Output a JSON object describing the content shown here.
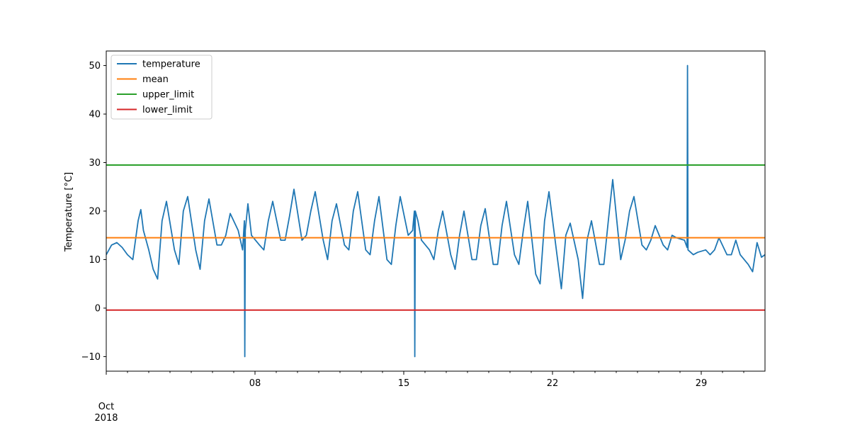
{
  "chart_data": {
    "type": "line",
    "title": "",
    "xlabel": "",
    "ylabel": "Temperature [°C]",
    "x_ticks": [
      "08",
      "15",
      "22",
      "29"
    ],
    "x_tick_dates": [
      "2018-10-08",
      "2018-10-15",
      "2018-10-22",
      "2018-10-29"
    ],
    "x_origin_label": [
      "Oct",
      "2018"
    ],
    "xlim": [
      "2018-10-01",
      "2018-11-01"
    ],
    "ylim": [
      -13,
      53
    ],
    "y_ticks": [
      -10,
      0,
      10,
      20,
      30,
      40,
      50
    ],
    "legend": "upper-left",
    "grid": false,
    "series": [
      {
        "name": "temperature",
        "color": "#1f77b4",
        "x": [
          "2018-10-01T00:00",
          "2018-10-01T06:00",
          "2018-10-01T12:00",
          "2018-10-01T18:00",
          "2018-10-02T00:00",
          "2018-10-02T06:00",
          "2018-10-02T12:00",
          "2018-10-02T15:00",
          "2018-10-02T18:00",
          "2018-10-03T00:00",
          "2018-10-03T05:00",
          "2018-10-03T10:00",
          "2018-10-03T15:00",
          "2018-10-03T20:00",
          "2018-10-04T05:00",
          "2018-10-04T10:00",
          "2018-10-04T15:00",
          "2018-10-04T20:00",
          "2018-10-05T05:00",
          "2018-10-05T10:00",
          "2018-10-05T15:00",
          "2018-10-05T20:00",
          "2018-10-06T05:00",
          "2018-10-06T10:00",
          "2018-10-06T15:00",
          "2018-10-06T20:00",
          "2018-10-07T05:00",
          "2018-10-07T10:00",
          "2018-10-07T12:00",
          "2018-10-07T12:30",
          "2018-10-07T13:00",
          "2018-10-07T16:00",
          "2018-10-07T20:00",
          "2018-10-08T05:00",
          "2018-10-08T10:00",
          "2018-10-08T15:00",
          "2018-10-08T20:00",
          "2018-10-09T05:00",
          "2018-10-09T10:00",
          "2018-10-09T15:00",
          "2018-10-09T20:00",
          "2018-10-10T05:00",
          "2018-10-10T10:00",
          "2018-10-10T15:00",
          "2018-10-10T20:00",
          "2018-10-11T05:00",
          "2018-10-11T10:00",
          "2018-10-11T15:00",
          "2018-10-11T20:00",
          "2018-10-12T05:00",
          "2018-10-12T10:00",
          "2018-10-12T15:00",
          "2018-10-12T20:00",
          "2018-10-13T05:00",
          "2018-10-13T10:00",
          "2018-10-13T15:00",
          "2018-10-13T20:00",
          "2018-10-14T05:00",
          "2018-10-14T10:00",
          "2018-10-14T15:00",
          "2018-10-14T20:00",
          "2018-10-15T05:00",
          "2018-10-15T10:00",
          "2018-10-15T12:00",
          "2018-10-15T12:30",
          "2018-10-15T13:00",
          "2018-10-15T16:00",
          "2018-10-15T20:00",
          "2018-10-16T05:00",
          "2018-10-16T10:00",
          "2018-10-16T15:00",
          "2018-10-16T20:00",
          "2018-10-17T05:00",
          "2018-10-17T10:00",
          "2018-10-17T15:00",
          "2018-10-17T20:00",
          "2018-10-18T05:00",
          "2018-10-18T10:00",
          "2018-10-18T15:00",
          "2018-10-18T20:00",
          "2018-10-19T05:00",
          "2018-10-19T10:00",
          "2018-10-19T15:00",
          "2018-10-19T20:00",
          "2018-10-20T05:00",
          "2018-10-20T10:00",
          "2018-10-20T15:00",
          "2018-10-20T20:00",
          "2018-10-21T05:00",
          "2018-10-21T10:00",
          "2018-10-21T15:00",
          "2018-10-21T20:00",
          "2018-10-22T05:00",
          "2018-10-22T10:00",
          "2018-10-22T15:00",
          "2018-10-22T20:00",
          "2018-10-23T05:00",
          "2018-10-23T10:00",
          "2018-10-23T15:00",
          "2018-10-23T20:00",
          "2018-10-24T05:00",
          "2018-10-24T10:00",
          "2018-10-24T15:00",
          "2018-10-24T20:00",
          "2018-10-25T05:00",
          "2018-10-25T10:00",
          "2018-10-25T15:00",
          "2018-10-25T20:00",
          "2018-10-26T05:00",
          "2018-10-26T10:00",
          "2018-10-26T15:00",
          "2018-10-26T20:00",
          "2018-10-27T05:00",
          "2018-10-27T10:00",
          "2018-10-27T15:00",
          "2018-10-27T20:00",
          "2018-10-28T05:00",
          "2018-10-28T08:00",
          "2018-10-28T08:30",
          "2018-10-28T09:00",
          "2018-10-28T15:00",
          "2018-10-28T20:00",
          "2018-10-29T05:00",
          "2018-10-29T10:00",
          "2018-10-29T15:00",
          "2018-10-29T20:00",
          "2018-10-30T05:00",
          "2018-10-30T10:00",
          "2018-10-30T15:00",
          "2018-10-30T20:00",
          "2018-10-31T05:00",
          "2018-10-31T10:00",
          "2018-10-31T15:00",
          "2018-10-31T20:00",
          "2018-11-01T00:00"
        ],
        "y": [
          11,
          13,
          13.5,
          12.5,
          11,
          10,
          18,
          20.3,
          16,
          12,
          8,
          6,
          18,
          22,
          12,
          9,
          20,
          23,
          12,
          8,
          18,
          22.5,
          13,
          13,
          15,
          19.5,
          16,
          12,
          18,
          -10,
          16,
          21.5,
          15,
          13,
          12,
          18,
          22,
          14,
          14,
          19,
          24.5,
          14,
          15,
          20,
          24,
          14,
          10,
          18,
          21.5,
          13,
          12,
          20,
          24,
          12,
          11,
          18,
          23,
          10,
          9,
          17,
          23,
          15,
          16,
          20,
          -10,
          20,
          18,
          14,
          12,
          10,
          16,
          20,
          11,
          8,
          15,
          20,
          10,
          10,
          17,
          20.5,
          9,
          9,
          17,
          22,
          11,
          9,
          16,
          22,
          7,
          5,
          18,
          24,
          11,
          4,
          15,
          17.5,
          10,
          2,
          14,
          18,
          9,
          9,
          18,
          26.5,
          10,
          14,
          20,
          23,
          13,
          12,
          14,
          17,
          13,
          12,
          15,
          14.5,
          14,
          12.5,
          50,
          12,
          11,
          11.5,
          12,
          11,
          12,
          14.5,
          11,
          11,
          14,
          11,
          9,
          7.5,
          13.5,
          10.5,
          11
        ]
      },
      {
        "name": "mean",
        "color": "#ff7f0e",
        "constant": 14.5
      },
      {
        "name": "upper_limit",
        "color": "#2ca02c",
        "constant": 29.5
      },
      {
        "name": "lower_limit",
        "color": "#d62728",
        "constant": -0.4
      }
    ]
  }
}
